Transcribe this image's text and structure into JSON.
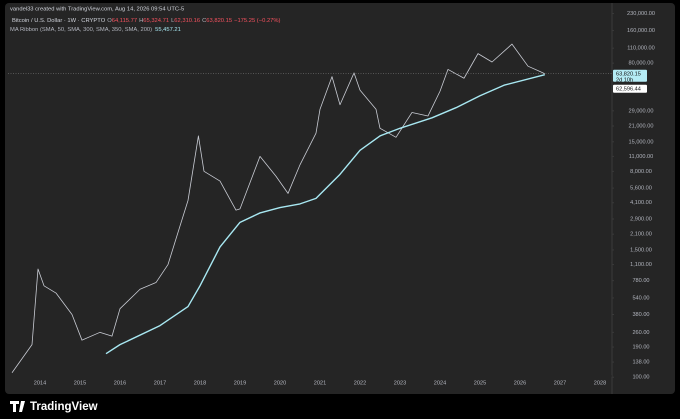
{
  "chart_data": {
    "type": "line",
    "log_scale": true,
    "attribution": "vandel33 created with TradingView.com, Aug 14, 2026 09:54 UTC-5",
    "title": "Bitcoin / U.S. Dollar · 1W · CRYPTO",
    "ohlc": [
      {
        "key": "O",
        "text": "64,115.77"
      },
      {
        "key": "H",
        "text": "65,324.71"
      },
      {
        "key": "L",
        "text": "62,310.16"
      },
      {
        "key": "C",
        "text": "63,820.15"
      }
    ],
    "change": "−175.25 (−0.27%)",
    "indicator": "MA Ribbon (SMA, 50, SMA, 300, SMA, 350, SMA, 200)",
    "indicator_value": "55,457.21",
    "price_label": "63,820.15",
    "countdown": "2d 10h",
    "ma_label": "62,596.44",
    "brand": "TradingView",
    "xlim": [
      2013.2,
      2028.3
    ],
    "xticks": [
      2014,
      2015,
      2016,
      2017,
      2018,
      2019,
      2020,
      2021,
      2022,
      2023,
      2024,
      2025,
      2026,
      2027,
      2028
    ],
    "ylim": [
      73,
      270000
    ],
    "yticks": [
      {
        "value": 230000,
        "label": "230,000.00"
      },
      {
        "value": 160000,
        "label": "160,000.00"
      },
      {
        "value": 110000,
        "label": "110,000.00"
      },
      {
        "value": 80000,
        "label": "80,000.00"
      },
      {
        "value": 29000,
        "label": "29,000.00"
      },
      {
        "value": 21000,
        "label": "21,000.00"
      },
      {
        "value": 15000,
        "label": "15,000.00"
      },
      {
        "value": 11000,
        "label": "11,000.00"
      },
      {
        "value": 8000,
        "label": "8,000.00"
      },
      {
        "value": 5600,
        "label": "5,600.00"
      },
      {
        "value": 4100,
        "label": "4,100.00"
      },
      {
        "value": 2900,
        "label": "2,900.00"
      },
      {
        "value": 2100,
        "label": "2,100.00"
      },
      {
        "value": 1500,
        "label": "1,500.00"
      },
      {
        "value": 1100,
        "label": "1,100.00"
      },
      {
        "value": 780,
        "label": "780.00"
      },
      {
        "value": 540,
        "label": "540.00"
      },
      {
        "value": 380,
        "label": "380.00"
      },
      {
        "value": 260,
        "label": "260.00"
      },
      {
        "value": 190,
        "label": "190.00"
      },
      {
        "value": 138,
        "label": "138.00"
      },
      {
        "value": 100,
        "label": "100.00"
      }
    ],
    "series": [
      {
        "color": "#c9ccd4",
        "x": [
          2013.3,
          2013.8,
          2013.95,
          2014.1,
          2014.4,
          2014.8,
          2015.05,
          2015.5,
          2015.8,
          2016.0,
          2016.5,
          2016.9,
          2017.2,
          2017.5,
          2017.7,
          2017.96,
          2018.1,
          2018.5,
          2018.9,
          2019.0,
          2019.5,
          2019.9,
          2020.2,
          2020.5,
          2020.9,
          2021.0,
          2021.3,
          2021.5,
          2021.85,
          2022.0,
          2022.4,
          2022.5,
          2022.9,
          2023.3,
          2023.7,
          2024.0,
          2024.2,
          2024.6,
          2024.95,
          2025.3,
          2025.8,
          2026.2,
          2026.5,
          2026.62
        ],
        "values": [
          110,
          200,
          1000,
          700,
          600,
          380,
          220,
          260,
          240,
          430,
          650,
          750,
          1100,
          2500,
          4300,
          17000,
          8000,
          6500,
          3500,
          3600,
          11000,
          7200,
          5000,
          9200,
          18000,
          30000,
          60000,
          33000,
          65000,
          45000,
          30000,
          20000,
          16500,
          28000,
          26000,
          44000,
          70000,
          58000,
          98000,
          82000,
          120000,
          75000,
          67000,
          63820.15
        ]
      },
      {
        "color": "#a8e8f2",
        "axis_label": "MA",
        "x": [
          2015.65,
          2016.0,
          2017.0,
          2017.7,
          2018.0,
          2018.5,
          2019.0,
          2019.5,
          2020.0,
          2020.5,
          2020.9,
          2021.5,
          2022.0,
          2022.5,
          2023.0,
          2023.8,
          2024.4,
          2025.0,
          2025.6,
          2026.62
        ],
        "values": [
          165,
          200,
          300,
          450,
          700,
          1600,
          2700,
          3300,
          3700,
          4000,
          4500,
          7500,
          12500,
          17000,
          20000,
          25000,
          31000,
          40000,
          50000,
          62596.44
        ]
      }
    ]
  }
}
